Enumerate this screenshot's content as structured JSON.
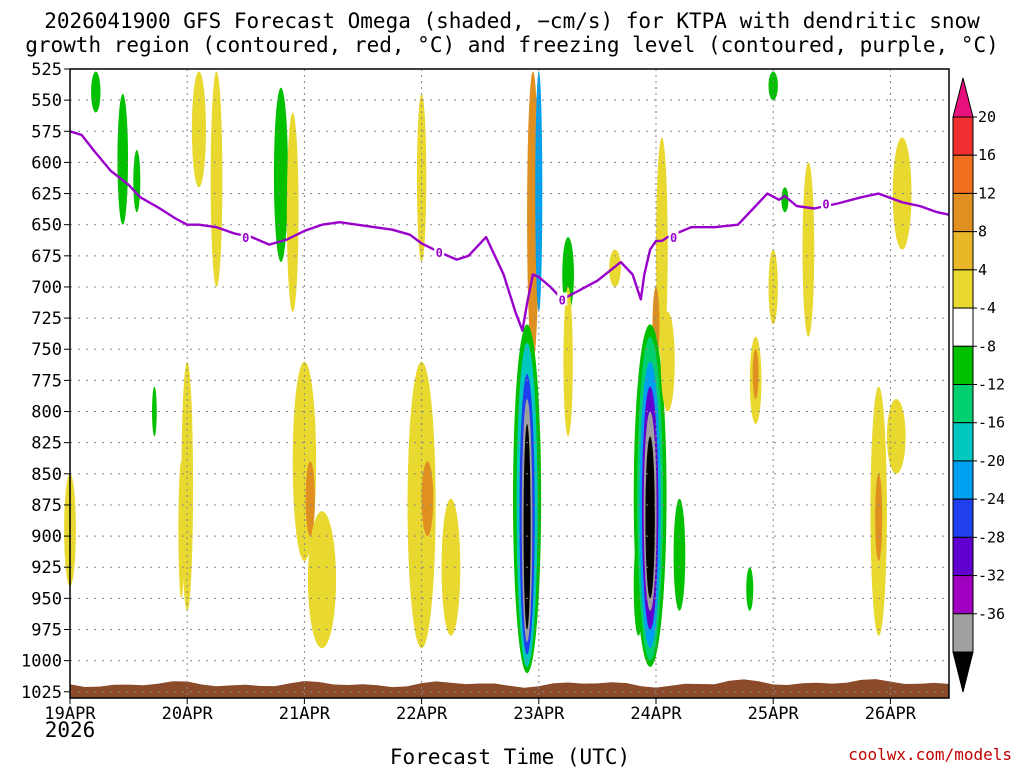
{
  "chart_data": {
    "type": "heatmap",
    "title_line1": "2026041900 GFS Forecast Omega (shaded, −cm/s) for KTPA with dendritic snow",
    "title_line2": "growth region (contoured, red, °C) and freezing level (contoured, purple, °C)",
    "xlabel": "Forecast Time (UTC)",
    "year_label": "2026",
    "credit": "coolwx.com/models",
    "x_ticks": [
      "19APR",
      "20APR",
      "21APR",
      "22APR",
      "23APR",
      "24APR",
      "25APR",
      "26APR"
    ],
    "x_range_days": [
      0,
      7.5
    ],
    "y_ticks": [
      "525",
      "550",
      "575",
      "600",
      "625",
      "650",
      "675",
      "700",
      "725",
      "750",
      "775",
      "800",
      "825",
      "850",
      "875",
      "900",
      "925",
      "950",
      "975",
      "1000",
      "1025"
    ],
    "y_range_hpa": [
      525,
      1030
    ],
    "grid": "dotted",
    "colorbar": {
      "labels": [
        "20",
        "16",
        "12",
        "8",
        "4",
        "-4",
        "-8",
        "-12",
        "-16",
        "-20",
        "-24",
        "-28",
        "-32",
        "-36"
      ],
      "colors": [
        "#e8107e",
        "#f03030",
        "#f07020",
        "#e09020",
        "#e8b828",
        "#e8d830",
        "#ffffff",
        "#00c000",
        "#00d070",
        "#00c8c0",
        "#00a0f0",
        "#2040f0",
        "#6000d0",
        "#a000c0",
        "#a0a0a0",
        "#000000"
      ]
    },
    "freezing_level": {
      "label": "0",
      "color": "#9900cc",
      "x_days": [
        0,
        0.1,
        0.2,
        0.35,
        0.5,
        0.6,
        0.75,
        0.9,
        1.0,
        1.1,
        1.25,
        1.4,
        1.55,
        1.7,
        1.85,
        2.0,
        2.15,
        2.3,
        2.45,
        2.6,
        2.75,
        2.9,
        3.0,
        3.15,
        3.3,
        3.4,
        3.55,
        3.7,
        3.8,
        3.86,
        3.9,
        3.95,
        4.0,
        4.1,
        4.2,
        4.3,
        4.5,
        4.7,
        4.8,
        4.87,
        4.9,
        4.95,
        5.0,
        5.05,
        5.1,
        5.3,
        5.5,
        5.7,
        5.85,
        5.95,
        6.05,
        6.1,
        6.2,
        6.35,
        6.55,
        6.75,
        6.9,
        7.1,
        7.25,
        7.4,
        7.5
      ],
      "y_hpa": [
        575,
        578,
        590,
        607,
        618,
        628,
        636,
        645,
        650,
        650,
        652,
        657,
        660,
        666,
        662,
        655,
        650,
        648,
        650,
        652,
        654,
        658,
        665,
        672,
        678,
        675,
        660,
        690,
        720,
        735,
        713,
        690,
        692,
        700,
        710,
        705,
        695,
        680,
        690,
        710,
        690,
        670,
        663,
        663,
        660,
        652,
        652,
        650,
        635,
        625,
        630,
        627,
        635,
        637,
        633,
        628,
        625,
        632,
        635,
        640,
        642
      ]
    },
    "omega_regions": [
      {
        "x": 0.22,
        "p_top": 527,
        "p_bot": 560,
        "w": 0.04,
        "v": -5
      },
      {
        "x": 0.45,
        "p_top": 545,
        "p_bot": 650,
        "w": 0.045,
        "v": -6
      },
      {
        "x": 0.57,
        "p_top": 590,
        "p_bot": 640,
        "w": 0.03,
        "v": -5
      },
      {
        "x": 1.1,
        "p_top": 527,
        "p_bot": 620,
        "w": 0.06,
        "v": 5
      },
      {
        "x": 1.25,
        "p_top": 527,
        "p_bot": 700,
        "w": 0.05,
        "v": 5
      },
      {
        "x": 1.8,
        "p_top": 540,
        "p_bot": 680,
        "w": 0.06,
        "v": -5
      },
      {
        "x": 1.9,
        "p_top": 560,
        "p_bot": 720,
        "w": 0.05,
        "v": 5
      },
      {
        "x": 3.0,
        "p_top": 545,
        "p_bot": 680,
        "w": 0.04,
        "v": 5
      },
      {
        "x": 3.95,
        "p_top": 527,
        "p_bot": 760,
        "w": 0.05,
        "v": 9
      },
      {
        "x": 4.0,
        "p_top": 527,
        "p_bot": 720,
        "w": 0.03,
        "v": -17
      },
      {
        "x": 4.25,
        "p_top": 660,
        "p_bot": 720,
        "w": 0.05,
        "v": -6
      },
      {
        "x": 4.65,
        "p_top": 670,
        "p_bot": 700,
        "w": 0.05,
        "v": 5
      },
      {
        "x": 5.05,
        "p_top": 580,
        "p_bot": 760,
        "w": 0.05,
        "v": 6
      },
      {
        "x": 5.0,
        "p_top": 700,
        "p_bot": 760,
        "w": 0.03,
        "v": 10
      },
      {
        "x": 6.0,
        "p_top": 527,
        "p_bot": 550,
        "w": 0.04,
        "v": -6
      },
      {
        "x": 6.0,
        "p_top": 670,
        "p_bot": 730,
        "w": 0.04,
        "v": 5
      },
      {
        "x": 6.3,
        "p_top": 600,
        "p_bot": 740,
        "w": 0.05,
        "v": 5
      },
      {
        "x": 6.1,
        "p_top": 620,
        "p_bot": 640,
        "w": 0.03,
        "v": -5
      },
      {
        "x": 7.1,
        "p_top": 580,
        "p_bot": 670,
        "w": 0.08,
        "v": 5
      },
      {
        "x": 0.0,
        "p_top": 850,
        "p_bot": 940,
        "w": 0.05,
        "v": 5
      },
      {
        "x": 1.0,
        "p_top": 760,
        "p_bot": 960,
        "w": 0.05,
        "v": 5
      },
      {
        "x": 0.72,
        "p_top": 780,
        "p_bot": 820,
        "w": 0.02,
        "v": -5
      },
      {
        "x": 0.95,
        "p_top": 840,
        "p_bot": 950,
        "w": 0.025,
        "v": 5
      },
      {
        "x": 2.0,
        "p_top": 760,
        "p_bot": 920,
        "w": 0.1,
        "v": 6
      },
      {
        "x": 2.05,
        "p_top": 840,
        "p_bot": 900,
        "w": 0.04,
        "v": 9
      },
      {
        "x": 2.15,
        "p_top": 880,
        "p_bot": 990,
        "w": 0.12,
        "v": 5
      },
      {
        "x": 3.0,
        "p_top": 760,
        "p_bot": 990,
        "w": 0.12,
        "v": 5
      },
      {
        "x": 3.05,
        "p_top": 840,
        "p_bot": 900,
        "w": 0.05,
        "v": 9
      },
      {
        "x": 3.25,
        "p_top": 870,
        "p_bot": 980,
        "w": 0.08,
        "v": 5
      },
      {
        "x": 3.9,
        "p_top": 730,
        "p_bot": 1010,
        "w": 0.12,
        "v": -6
      },
      {
        "x": 3.9,
        "p_top": 745,
        "p_bot": 1005,
        "w": 0.09,
        "v": -13
      },
      {
        "x": 3.9,
        "p_top": 770,
        "p_bot": 995,
        "w": 0.065,
        "v": -22
      },
      {
        "x": 3.9,
        "p_top": 790,
        "p_bot": 985,
        "w": 0.045,
        "v": -33
      },
      {
        "x": 3.9,
        "p_top": 810,
        "p_bot": 975,
        "w": 0.03,
        "v": -40
      },
      {
        "x": 4.25,
        "p_top": 700,
        "p_bot": 820,
        "w": 0.04,
        "v": 5
      },
      {
        "x": 4.85,
        "p_top": 900,
        "p_bot": 980,
        "w": 0.04,
        "v": -5
      },
      {
        "x": 4.95,
        "p_top": 730,
        "p_bot": 1005,
        "w": 0.14,
        "v": -6
      },
      {
        "x": 4.95,
        "p_top": 740,
        "p_bot": 1000,
        "w": 0.11,
        "v": -10
      },
      {
        "x": 4.95,
        "p_top": 760,
        "p_bot": 990,
        "w": 0.09,
        "v": -18
      },
      {
        "x": 4.95,
        "p_top": 780,
        "p_bot": 975,
        "w": 0.07,
        "v": -27
      },
      {
        "x": 4.95,
        "p_top": 800,
        "p_bot": 960,
        "w": 0.055,
        "v": -33
      },
      {
        "x": 4.95,
        "p_top": 820,
        "p_bot": 950,
        "w": 0.04,
        "v": -40
      },
      {
        "x": 5.1,
        "p_top": 720,
        "p_bot": 800,
        "w": 0.06,
        "v": 6
      },
      {
        "x": 5.2,
        "p_top": 870,
        "p_bot": 960,
        "w": 0.05,
        "v": -5
      },
      {
        "x": 5.85,
        "p_top": 740,
        "p_bot": 810,
        "w": 0.05,
        "v": 5
      },
      {
        "x": 5.85,
        "p_top": 750,
        "p_bot": 790,
        "w": 0.025,
        "v": 9
      },
      {
        "x": 5.8,
        "p_top": 925,
        "p_bot": 960,
        "w": 0.03,
        "v": -6
      },
      {
        "x": 6.9,
        "p_top": 780,
        "p_bot": 980,
        "w": 0.07,
        "v": 5
      },
      {
        "x": 6.9,
        "p_top": 850,
        "p_bot": 920,
        "w": 0.03,
        "v": 10
      },
      {
        "x": 7.05,
        "p_top": 790,
        "p_bot": 850,
        "w": 0.08,
        "v": 5
      }
    ]
  }
}
